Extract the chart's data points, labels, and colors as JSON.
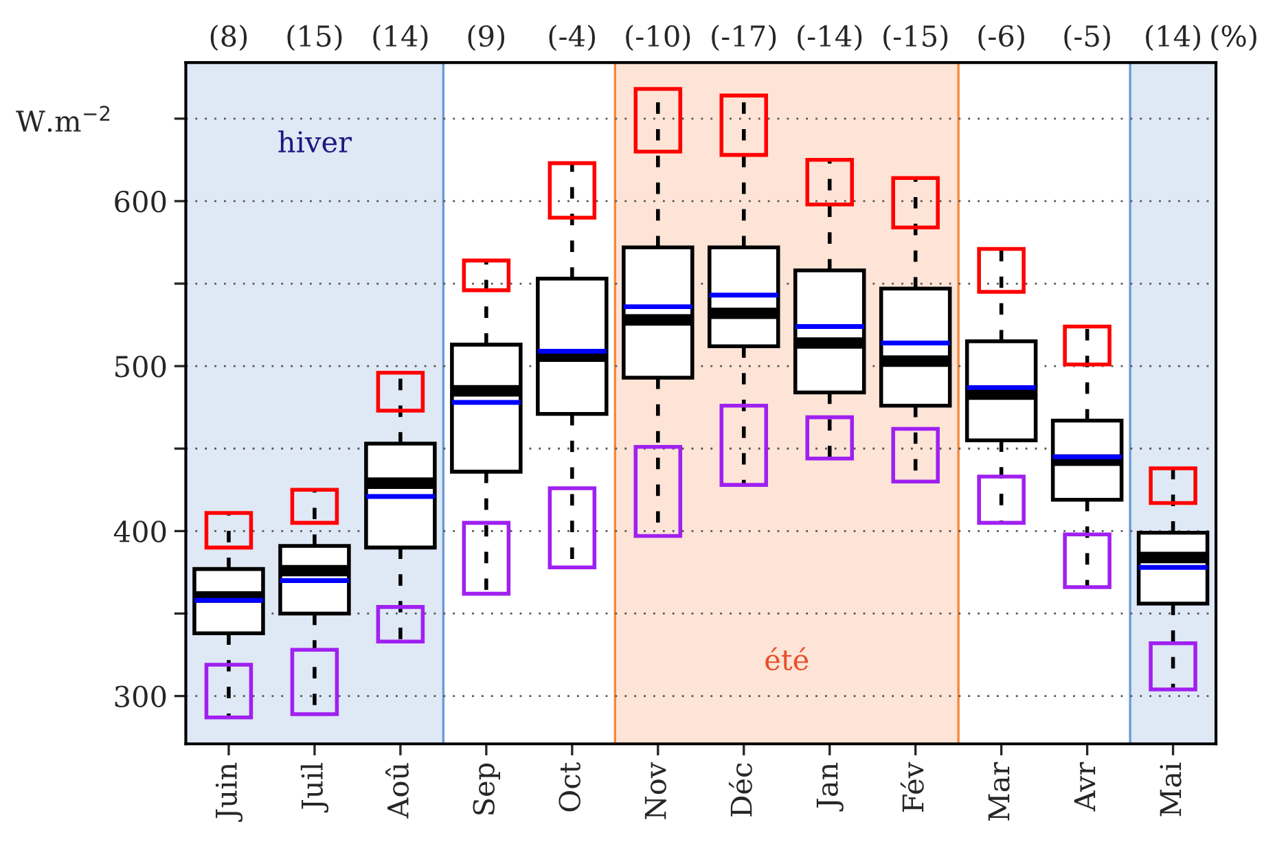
{
  "chart_data": {
    "type": "box",
    "ylabel": "W.m$^{−2}$",
    "categories": [
      "Juin",
      "Juil",
      "Aoû",
      "Sep",
      "Oct",
      "Nov",
      "Déc",
      "Jan",
      "Fév",
      "Mar",
      "Avr",
      "Mai"
    ],
    "series": [
      {
        "color": "#000000",
        "boxes": [
          {
            "low": 288,
            "q1": 338,
            "median": 360,
            "q3": 377,
            "high": 410,
            "mean": 358
          },
          {
            "low": 289,
            "q1": 350,
            "median": 376,
            "q3": 391,
            "high": 425,
            "mean": 370
          },
          {
            "low": 333,
            "q1": 390,
            "median": 429,
            "q3": 453,
            "high": 496,
            "mean": 421
          },
          {
            "low": 362,
            "q1": 436,
            "median": 485,
            "q3": 513,
            "high": 564,
            "mean": 478
          },
          {
            "low": 378,
            "q1": 471,
            "median": 506,
            "q3": 553,
            "high": 623,
            "mean": 509
          },
          {
            "low": 398,
            "q1": 493,
            "median": 528,
            "q3": 572,
            "high": 668,
            "mean": 536
          },
          {
            "low": 428,
            "q1": 512,
            "median": 532,
            "q3": 572,
            "high": 664,
            "mean": 543
          },
          {
            "low": 444,
            "q1": 484,
            "median": 514,
            "q3": 558,
            "high": 625,
            "mean": 524
          },
          {
            "low": 430,
            "q1": 476,
            "median": 503,
            "q3": 547,
            "high": 614,
            "mean": 514
          },
          {
            "low": 405,
            "q1": 455,
            "median": 483,
            "q3": 515,
            "high": 571,
            "mean": 487
          },
          {
            "low": 366,
            "q1": 419,
            "median": 443,
            "q3": 467,
            "high": 524,
            "mean": 445
          },
          {
            "low": 305,
            "q1": 356,
            "median": 384,
            "q3": 399,
            "high": 438,
            "mean": 378
          }
        ]
      },
      {
        "type": "bar",
        "color": "#ff0000",
        "base": [
          390,
          405,
          473,
          546,
          590,
          630,
          628,
          598,
          584,
          545,
          501,
          417
        ],
        "values": [
          21,
          20,
          23,
          18,
          33,
          38,
          36,
          27,
          30,
          26,
          23,
          21
        ]
      },
      {
        "type": "bar",
        "color": "#a020f0",
        "base": [
          287,
          289,
          333,
          362,
          378,
          397,
          428,
          444,
          430,
          405,
          366,
          304
        ],
        "values": [
          32,
          39,
          21,
          43,
          48,
          54,
          48,
          25,
          32,
          28,
          32,
          28
        ]
      }
    ],
    "ylim": [
      271,
      684
    ],
    "yticks": [
      300,
      {
        "value": 350,
        "label": null
      },
      400,
      {
        "value": 450,
        "label": null
      },
      500,
      {
        "value": 550,
        "label": null
      },
      600,
      {
        "value": 650,
        "label": null
      }
    ],
    "grid": "y",
    "bands": [
      {
        "axis": "x",
        "from": "Juin",
        "to": "Aoû",
        "label": "hiver",
        "color": "#dfe8f5"
      },
      {
        "axis": "x",
        "from": "Nov",
        "to": "Fév",
        "label": "été",
        "color": "#fde4d7"
      },
      {
        "axis": "x",
        "from": "Mai",
        "to": "Mai",
        "color": "#dfe8f5"
      }
    ],
    "annotations": [
      "(8)",
      "(15)",
      "(14)",
      "(9)",
      "(-4)",
      "(-10)",
      "(-17)",
      "(-14)",
      "(-15)",
      "(-6)",
      "(-5)",
      "(14)",
      "(%)"
    ]
  }
}
